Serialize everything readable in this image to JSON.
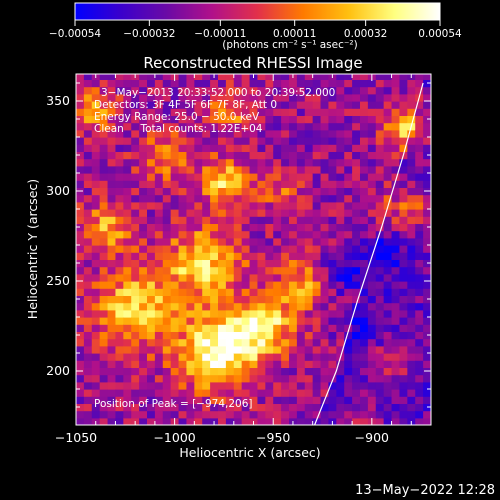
{
  "chart_data": {
    "type": "heatmap",
    "title": "Reconstructed RHESSI Image",
    "xlabel": "Heliocentric X (arcsec)",
    "ylabel": "Heliocentric Y (arcsec)",
    "xlim": [
      -1050,
      -870
    ],
    "ylim": [
      170,
      365
    ],
    "xticks": [
      -1050,
      -1000,
      -950,
      -900
    ],
    "xtick_labels": [
      "−1050",
      "−1000",
      "−950",
      "−900"
    ],
    "yticks": [
      200,
      250,
      300,
      350
    ],
    "ytick_labels": [
      "200",
      "250",
      "300",
      "350"
    ],
    "colorbar": {
      "min": -0.00054,
      "max": 0.00054,
      "ticks": [
        -0.00054,
        -0.00032,
        -0.00011,
        0.00011,
        0.00032,
        0.00054
      ],
      "tick_labels": [
        "−0.00054",
        "−0.00032",
        "−0.00011",
        "0.00011",
        "0.00032",
        "0.00054"
      ],
      "unit_label": "(photons cm⁻² s⁻¹ asec⁻²)",
      "colors": [
        "#0000ff",
        "#3a00cc",
        "#6a0aa6",
        "#b0108a",
        "#e2304a",
        "#ff7a00",
        "#ffc010",
        "#ffff80",
        "#ffffff"
      ]
    },
    "annotations": {
      "time_range": "3−May−2013 20:33:52.000 to 20:39:52.000",
      "detectors": "Detectors: 3F 4F 5F 6F 7F 8F, Att 0",
      "energy": "Energy Range: 25.0 − 50.0 keV",
      "clean": "Clean     Total counts: 1.22E+04",
      "peak": "Position of Peak = [−974,206]"
    },
    "peak_position": [
      -974,
      206
    ],
    "limb_curve": [
      [
        -929,
        170
      ],
      [
        -918,
        200
      ],
      [
        -907,
        240
      ],
      [
        -895,
        280
      ],
      [
        -884,
        320
      ],
      [
        -874,
        360
      ]
    ],
    "intensity_blobs": [
      {
        "x": -978,
        "y": 210,
        "sigma": 14,
        "amp": 1.0
      },
      {
        "x": -955,
        "y": 225,
        "sigma": 11,
        "amp": 0.85
      },
      {
        "x": -1020,
        "y": 235,
        "sigma": 16,
        "amp": 0.7
      },
      {
        "x": -985,
        "y": 260,
        "sigma": 14,
        "amp": 0.75
      },
      {
        "x": -1035,
        "y": 280,
        "sigma": 10,
        "amp": 0.55
      },
      {
        "x": -1005,
        "y": 320,
        "sigma": 10,
        "amp": 0.5
      },
      {
        "x": -975,
        "y": 305,
        "sigma": 9,
        "amp": 0.75
      },
      {
        "x": -1040,
        "y": 345,
        "sigma": 8,
        "amp": 0.55
      },
      {
        "x": -972,
        "y": 345,
        "sigma": 8,
        "amp": 0.5
      },
      {
        "x": -935,
        "y": 250,
        "sigma": 10,
        "amp": 0.55
      },
      {
        "x": -947,
        "y": 300,
        "sigma": 8,
        "amp": 0.35
      },
      {
        "x": -880,
        "y": 335,
        "sigma": 9,
        "amp": 0.7
      },
      {
        "x": -882,
        "y": 290,
        "sigma": 9,
        "amp": 0.6
      },
      {
        "x": -890,
        "y": 205,
        "sigma": 8,
        "amp": 0.45
      },
      {
        "x": -905,
        "y": 175,
        "sigma": 7,
        "amp": 0.35
      }
    ],
    "negative_blobs": [
      {
        "x": -915,
        "y": 255,
        "sigma": 8,
        "amp": 0.5
      },
      {
        "x": -895,
        "y": 265,
        "sigma": 7,
        "amp": 0.45
      },
      {
        "x": -905,
        "y": 225,
        "sigma": 7,
        "amp": 0.35
      }
    ]
  },
  "footer": {
    "timestamp": "13−May−2022 12:28"
  }
}
